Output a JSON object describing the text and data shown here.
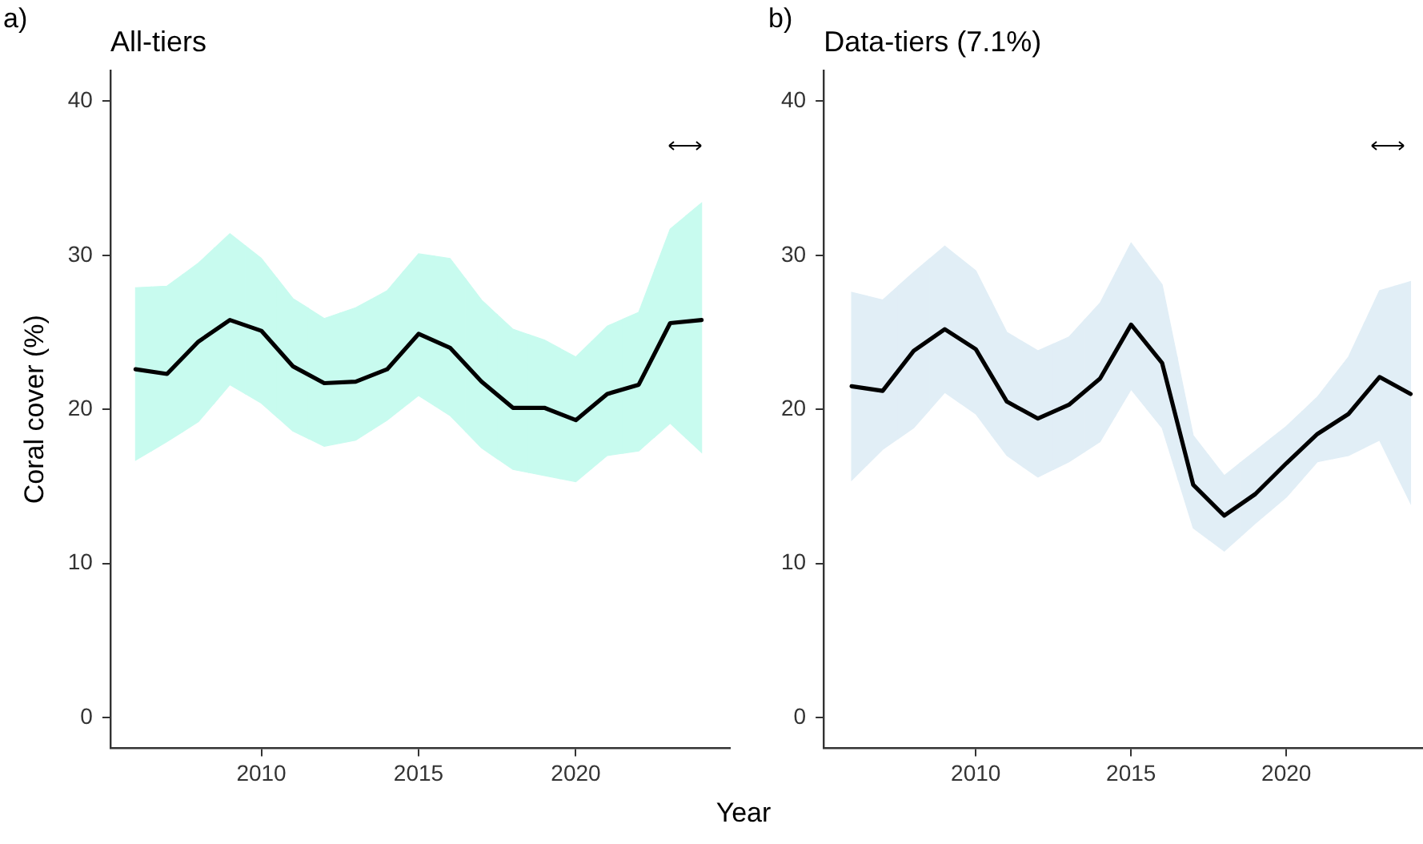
{
  "chart_data": [
    {
      "type": "line",
      "title": "All-tiers",
      "annotations": [
        "a)"
      ],
      "xlabel": "Year",
      "ylabel": "Coral cover (%)",
      "x": [
        2006,
        2007,
        2008,
        2009,
        2010,
        2011,
        2012,
        2013,
        2014,
        2015,
        2016,
        2017,
        2018,
        2019,
        2020,
        2021,
        2022,
        2023,
        2024
      ],
      "series": [
        {
          "color": "#000000",
          "colors": [
            "#c8fbef",
            "#c8fbef",
            "#c8fbef",
            "#c8fbef",
            "#c8fbef",
            "#c8fbef",
            "#c8fbef",
            "#c8fbef",
            "#c8fbef",
            "#c8fbef",
            "#c8fbef",
            "#c8fbef",
            "#c8fbef",
            "#c8fbef",
            "#c8fbef",
            "#c8fbef",
            "#c8fbef",
            "#c8fbef",
            "#c8fbef"
          ],
          "values": [
            22.6,
            22.3,
            24.4,
            25.8,
            25.1,
            22.8,
            21.7,
            21.8,
            22.6,
            24.9,
            24.0,
            21.8,
            20.1,
            20.1,
            19.3,
            21.0,
            21.6,
            25.6,
            25.8
          ],
          "upper": [
            27.9,
            28.0,
            29.5,
            31.4,
            29.8,
            27.2,
            25.9,
            26.6,
            27.7,
            30.1,
            29.8,
            27.1,
            25.2,
            24.5,
            23.4,
            25.4,
            26.3,
            31.7,
            33.4
          ],
          "lower": [
            16.7,
            17.9,
            19.2,
            21.6,
            20.4,
            18.6,
            17.6,
            18.0,
            19.3,
            20.9,
            19.6,
            17.5,
            16.1,
            15.7,
            15.3,
            17.0,
            17.3,
            19.1,
            17.2
          ]
        }
      ],
      "xlim": [
        2005.2,
        2024.9
      ],
      "xticks": [
        2010,
        2015,
        2020
      ],
      "ylim": [
        -2,
        42
      ],
      "yticks": [
        0,
        10,
        20,
        30,
        40
      ],
      "grid": false,
      "legend": false,
      "marker": "none",
      "line_style": "solid"
    },
    {
      "type": "line",
      "title": "Data-tiers (7.1%)",
      "annotations": [
        "b)"
      ],
      "x": [
        2006,
        2007,
        2008,
        2009,
        2010,
        2011,
        2012,
        2013,
        2014,
        2015,
        2016,
        2017,
        2018,
        2019,
        2020,
        2021,
        2022,
        2023,
        2024
      ],
      "series": [
        {
          "color": "#000000",
          "colors": [
            "#e1eef6",
            "#e1eef6",
            "#e1eef6",
            "#e1eef6",
            "#e1eef6",
            "#e1eef6",
            "#e1eef6",
            "#e1eef6",
            "#e1eef6",
            "#e1eef6",
            "#e1eef6",
            "#e1eef6",
            "#e1eef6",
            "#e1eef6",
            "#e1eef6",
            "#e1eef6",
            "#e1eef6",
            "#e1eef6",
            "#e1eef6"
          ],
          "values": [
            21.5,
            21.2,
            23.8,
            25.2,
            23.9,
            20.5,
            19.4,
            20.3,
            22.0,
            25.5,
            23.0,
            15.1,
            13.1,
            14.5,
            16.5,
            18.4,
            19.7,
            22.1,
            21.0
          ],
          "upper": [
            27.6,
            27.1,
            28.9,
            30.6,
            29.0,
            25.0,
            23.8,
            24.7,
            26.9,
            30.8,
            28.1,
            18.3,
            15.7,
            17.3,
            18.9,
            20.8,
            23.4,
            27.7,
            28.3
          ],
          "lower": [
            15.4,
            17.4,
            18.8,
            21.1,
            19.7,
            17.0,
            15.6,
            16.6,
            17.9,
            21.3,
            18.8,
            12.3,
            10.8,
            12.6,
            14.3,
            16.6,
            17.0,
            18.0,
            13.9
          ]
        }
      ],
      "xlim": [
        2005.1,
        2024.4
      ],
      "xticks": [
        2010,
        2015,
        2020
      ],
      "ylim": [
        -2,
        42
      ],
      "yticks": [
        0,
        10,
        20,
        30,
        40
      ],
      "grid": false,
      "legend": false,
      "marker": "none",
      "line_style": "solid"
    }
  ]
}
